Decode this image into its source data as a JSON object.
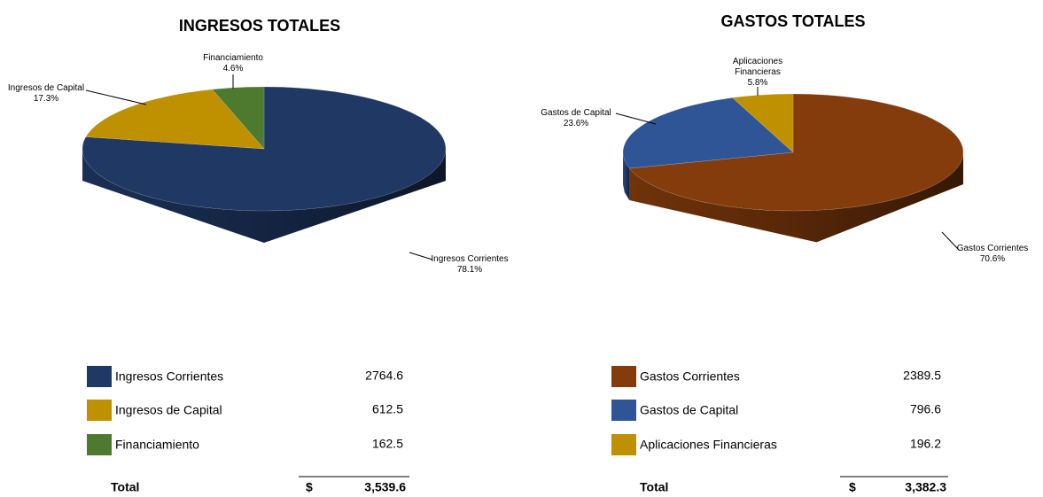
{
  "chart_data": [
    {
      "type": "pie",
      "title": "INGRESOS TOTALES",
      "categories": [
        "Ingresos Corrientes",
        "Ingresos de Capital",
        "Financiamiento"
      ],
      "values": [
        78.1,
        17.3,
        4.6
      ],
      "value_labels": [
        "78.1%",
        "17.3%",
        "4.6%"
      ],
      "colors": [
        "#1f3864",
        "#bf9000",
        "#4e7a2f"
      ],
      "amounts": [
        2764.6,
        612.5,
        162.5
      ],
      "total_label": "Total",
      "currency": "$",
      "total": {
        "value": 3539.6,
        "label": "3,539.6"
      }
    },
    {
      "type": "pie",
      "title": "GASTOS TOTALES",
      "categories": [
        "Gastos Corrientes",
        "Gastos de Capital",
        "Aplicaciones Financieras"
      ],
      "values": [
        70.6,
        23.6,
        5.8
      ],
      "value_labels": [
        "70.6%",
        "23.6%",
        "5.8%"
      ],
      "colors": [
        "#843c0c",
        "#2f5597",
        "#bf9000"
      ],
      "amounts": [
        2389.5,
        796.6,
        196.2
      ],
      "total_label": "Total",
      "currency": "$",
      "total": {
        "value": 3382.3,
        "label": "3,382.3"
      }
    }
  ]
}
